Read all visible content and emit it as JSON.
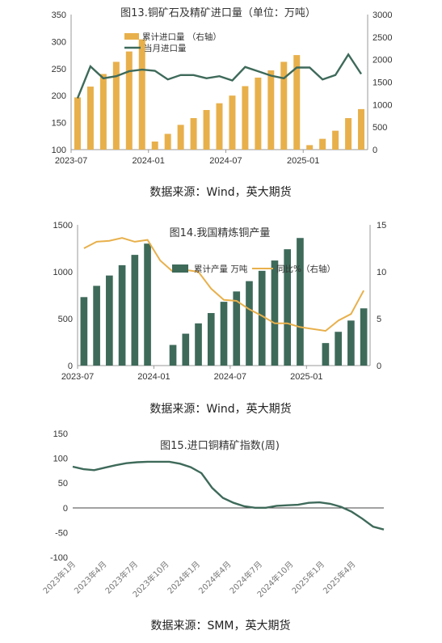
{
  "colors": {
    "bar_gold": "#E8B04B",
    "bar_green": "#3E6A5A",
    "line_green": "#3E6A5A",
    "line_gold": "#E8B04B",
    "line_blue": "#3E6A5A"
  },
  "chart_data": [
    {
      "type": "bar",
      "title": "图13.铜矿石及精矿进口量（单位：万吨）",
      "categories": [
        "2023-07",
        "2023-08",
        "2023-09",
        "2023-10",
        "2023-11",
        "2023-12",
        "2024-01",
        "2024-02",
        "2024-03",
        "2024-04",
        "2024-05",
        "2024-06",
        "2024-07",
        "2024-08",
        "2024-09",
        "2024-10",
        "2024-11",
        "2024-12",
        "2025-01",
        "2025-02",
        "2025-03",
        "2025-04",
        "2025-05"
      ],
      "x_ticks": [
        "2023-07",
        "2024-01",
        "2024-07",
        "2025-01"
      ],
      "series": [
        {
          "name": "累计进口量 （右轴）",
          "axis": "right",
          "chart": "bar",
          "values": [
            1160,
            1400,
            1680,
            1950,
            2180,
            2450,
            180,
            350,
            550,
            700,
            880,
            1030,
            1200,
            1410,
            1600,
            1760,
            1950,
            2100,
            100,
            240,
            420,
            700,
            900
          ]
        },
        {
          "name": "当月进口量",
          "axis": "left",
          "chart": "line",
          "values": [
            195,
            254,
            232,
            236,
            245,
            248,
            246,
            230,
            238,
            238,
            232,
            236,
            228,
            253,
            245,
            237,
            232,
            252,
            252,
            230,
            238,
            276,
            240
          ]
        }
      ],
      "ylim_left": [
        100,
        350
      ],
      "yticks_left": [
        "100",
        "150",
        "200",
        "250",
        "300",
        "350"
      ],
      "ylim_right": [
        0,
        3000
      ],
      "yticks_right": [
        "0",
        "500",
        "1000",
        "1500",
        "2000",
        "2500",
        "3000"
      ],
      "legend_position": "top-left",
      "source": "数据来源：Wind，英大期货"
    },
    {
      "type": "bar",
      "title": "图14.我国精炼铜产量",
      "categories": [
        "2023-07",
        "2023-08",
        "2023-09",
        "2023-10",
        "2023-11",
        "2023-12",
        "2024-01",
        "2024-02",
        "2024-03",
        "2024-04",
        "2024-05",
        "2024-06",
        "2024-07",
        "2024-08",
        "2024-09",
        "2024-10",
        "2024-11",
        "2024-12",
        "2025-01",
        "2025-02",
        "2025-03",
        "2025-04",
        "2025-05"
      ],
      "x_ticks": [
        "2023-07",
        "2024-01",
        "2024-07",
        "2025-01"
      ],
      "series": [
        {
          "name": "累计产量 万吨",
          "axis": "left",
          "chart": "bar",
          "values": [
            730,
            850,
            960,
            1070,
            1180,
            1300,
            null,
            220,
            340,
            450,
            560,
            680,
            790,
            900,
            1010,
            1120,
            1240,
            1360,
            null,
            240,
            360,
            480,
            610
          ]
        },
        {
          "name": "同比%（右轴）",
          "axis": "right",
          "chart": "line",
          "values": [
            12.5,
            13.2,
            13.3,
            13.6,
            13.2,
            13.4,
            11.2,
            10.0,
            10.2,
            10.0,
            8.2,
            7.0,
            6.9,
            6.0,
            5.3,
            4.5,
            4.5,
            4.1,
            3.9,
            3.7,
            4.8,
            5.5,
            8.0
          ]
        }
      ],
      "ylim_left": [
        0,
        1500
      ],
      "yticks_left": [
        "0",
        "500",
        "1000",
        "1500"
      ],
      "ylim_right": [
        0,
        15
      ],
      "yticks_right": [
        "0",
        "5",
        "10",
        "15"
      ],
      "legend_position": "top-right",
      "source": "数据来源：Wind，英大期货"
    },
    {
      "type": "line",
      "title": "图15.进口铜精矿指数(周)",
      "x_ticks": [
        "2023年1月",
        "2023年4月",
        "2023年7月",
        "2023年10月",
        "2024年1月",
        "2024年4月",
        "2024年7月",
        "2024年10月",
        "2025年1月",
        "2025年4月"
      ],
      "series": [
        {
          "name": "",
          "values": [
            83,
            78,
            76,
            81,
            86,
            90,
            92,
            93,
            93,
            93,
            89,
            82,
            70,
            40,
            20,
            10,
            3,
            0,
            0,
            4,
            5,
            6,
            10,
            11,
            8,
            2,
            -8,
            -22,
            -38,
            -44
          ]
        }
      ],
      "ylim": [
        -100,
        150
      ],
      "yticks": [
        "-100",
        "-50",
        "0",
        "50",
        "100",
        "150"
      ],
      "source": "数据来源：SMM，英大期货"
    }
  ]
}
